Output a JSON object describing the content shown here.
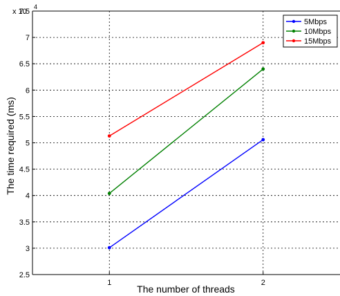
{
  "chart_data": {
    "type": "line",
    "x": [
      1,
      2
    ],
    "xlabel": "The number of threads",
    "ylabel": "The time required (ms)",
    "xlim": [
      0.5,
      2.5
    ],
    "ylim": [
      2.5,
      7.5
    ],
    "y_scale_label": "x 10",
    "y_scale_exponent": "4",
    "xticks": [
      "1",
      "2"
    ],
    "yticks": [
      "2.5",
      "3",
      "3.5",
      "4",
      "4.5",
      "5",
      "5.5",
      "6",
      "6.5",
      "7",
      "7.5"
    ],
    "grid": true,
    "legend_position": "top-right",
    "series": [
      {
        "name": "5Mbps",
        "color": "#0000ff",
        "values": [
          3.01,
          5.06
        ]
      },
      {
        "name": "10Mbps",
        "color": "#008000",
        "values": [
          4.04,
          6.4
        ]
      },
      {
        "name": "15Mbps",
        "color": "#ff0000",
        "values": [
          5.13,
          6.9
        ]
      }
    ]
  }
}
